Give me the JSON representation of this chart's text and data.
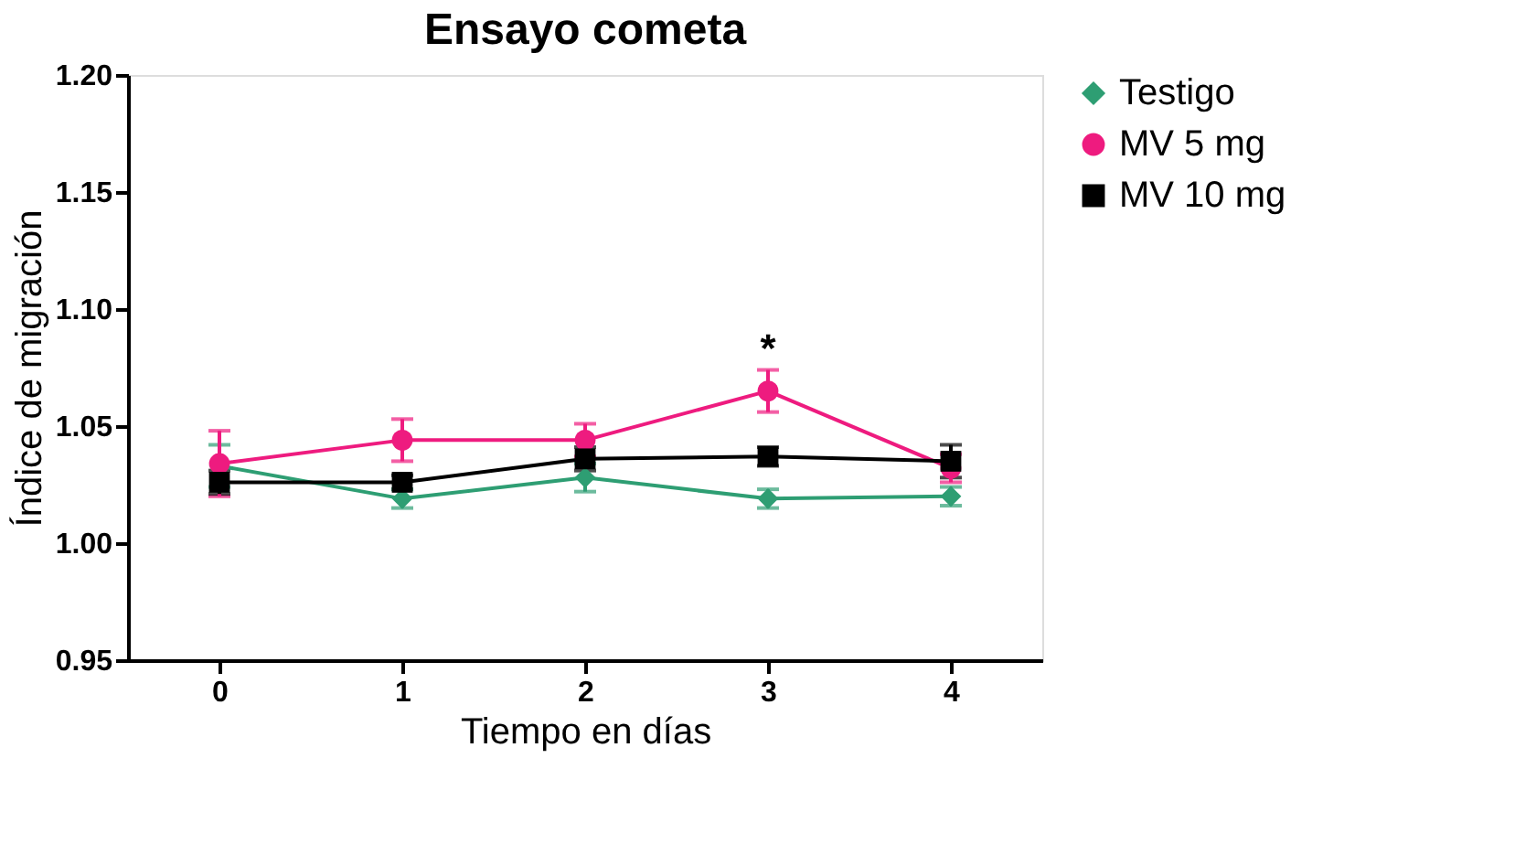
{
  "chart_data": {
    "type": "line",
    "title": "Ensayo cometa",
    "xlabel": "Tiempo en días",
    "ylabel": "Índice de migración",
    "x": [
      0,
      1,
      2,
      3,
      4
    ],
    "xlim": [
      -0.5,
      4.5
    ],
    "xticks": [
      0,
      1,
      2,
      3,
      4
    ],
    "ylim": [
      0.95,
      1.2
    ],
    "yticks": [
      0.95,
      {
        "value": 1.0,
        "label": "1.00"
      },
      1.05,
      {
        "value": 1.1,
        "label": "1.10"
      },
      1.15,
      {
        "value": 1.2,
        "label": "1.20"
      }
    ],
    "series": [
      {
        "name": "Testigo",
        "color": "#2e9e73",
        "marker": "diamond",
        "values": [
          1.033,
          1.019,
          1.028,
          1.019,
          1.02
        ],
        "errors": [
          0.009,
          0.004,
          0.006,
          0.004,
          0.004
        ]
      },
      {
        "name": "MV 5 mg",
        "color": "#ee1b7f",
        "marker": "circle",
        "values": [
          1.034,
          1.044,
          1.044,
          1.065,
          1.032
        ],
        "errors": [
          0.014,
          0.009,
          0.007,
          0.009,
          0.006
        ]
      },
      {
        "name": "MV 10 mg",
        "color": "#000000",
        "marker": "square",
        "values": [
          1.026,
          1.026,
          1.036,
          1.037,
          1.035
        ],
        "errors": [
          0.005,
          0.003,
          0.005,
          0.004,
          0.007
        ]
      }
    ],
    "annotations": [
      "*"
    ],
    "legend": "right",
    "grid": false
  }
}
